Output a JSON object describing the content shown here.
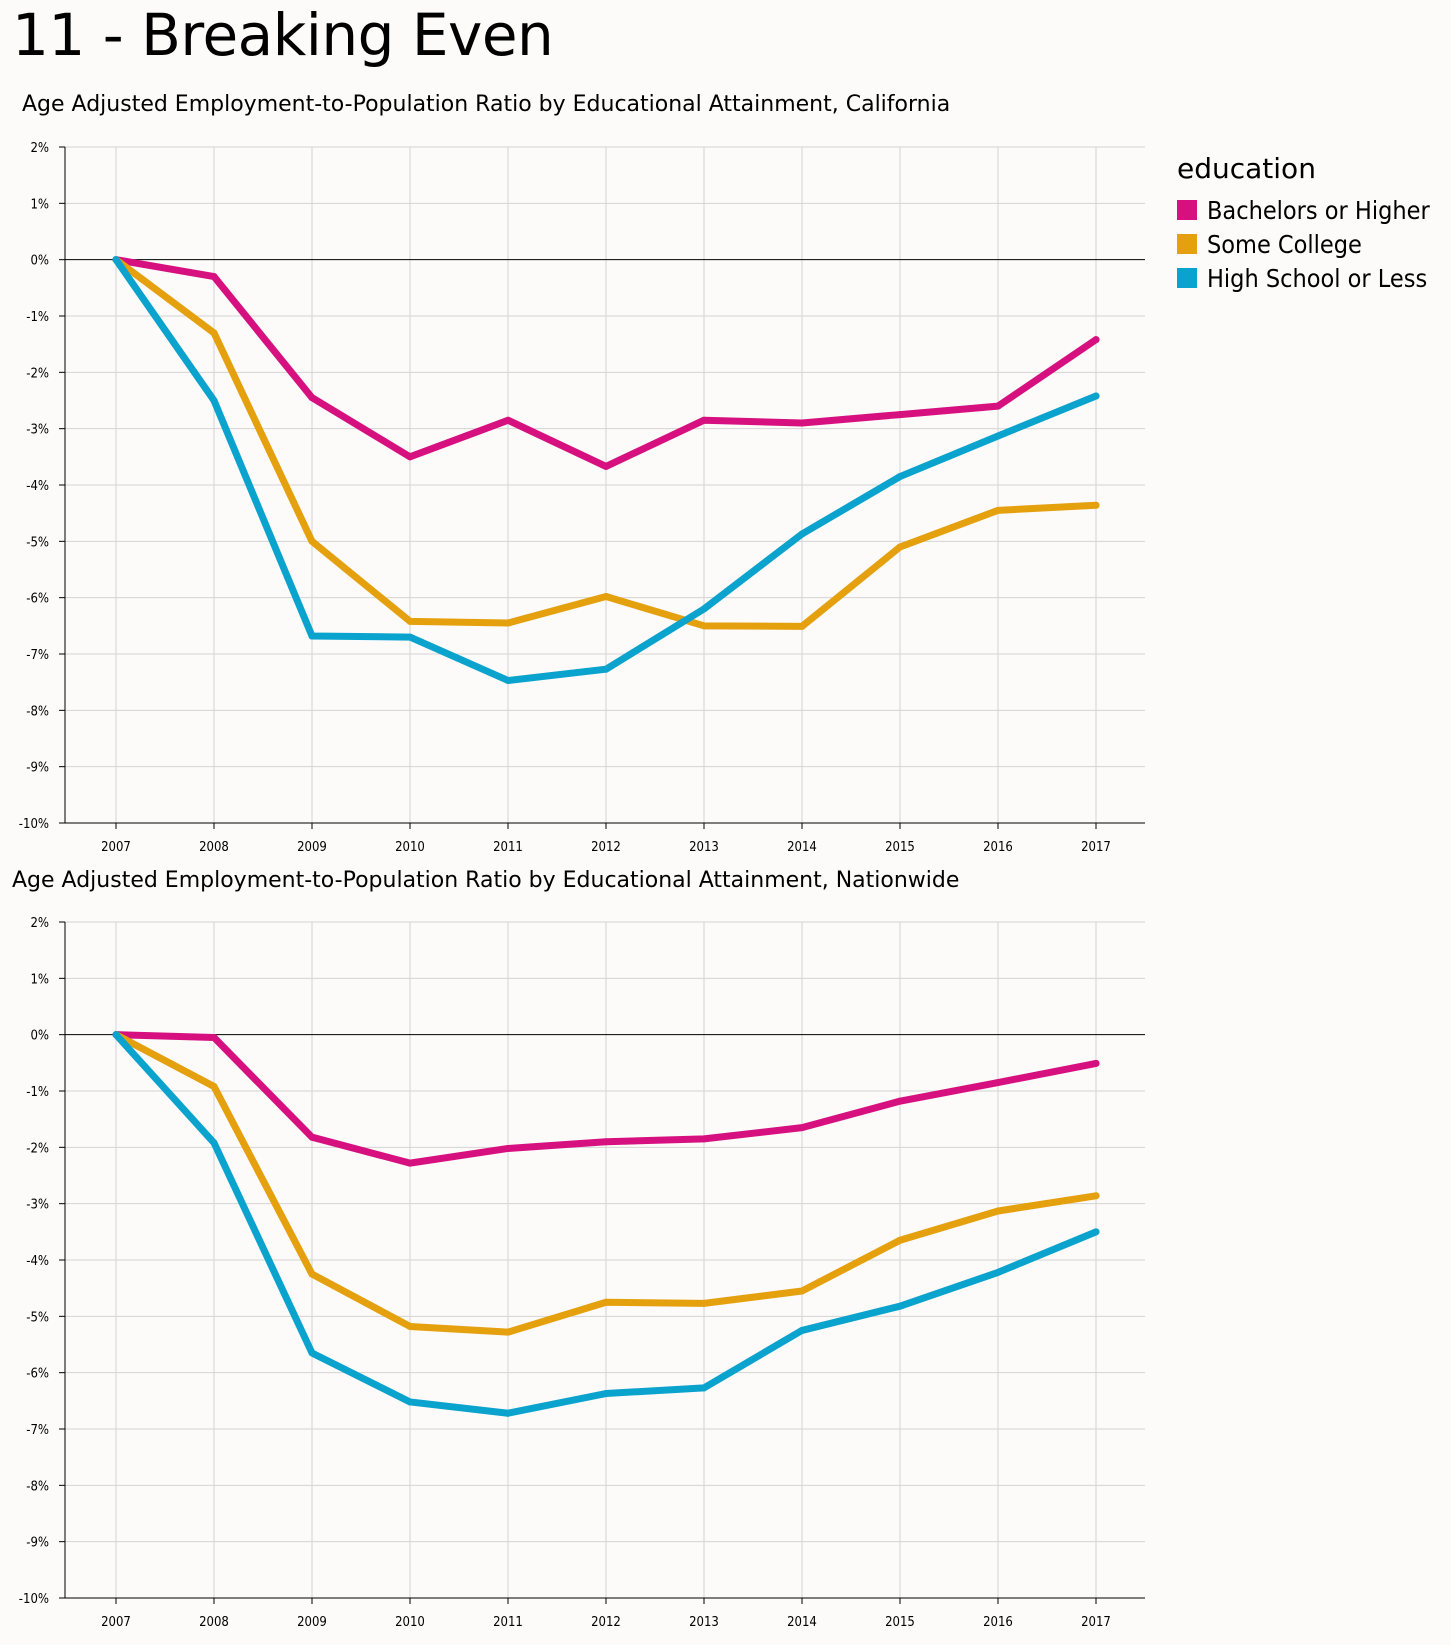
{
  "page": {
    "title": "11 - Breaking Even"
  },
  "legend": {
    "title": "education",
    "items": [
      {
        "label": "Bachelors or Higher",
        "color": "#d6117f"
      },
      {
        "label": "Some College",
        "color": "#e5a00d"
      },
      {
        "label": "High School or Less",
        "color": "#09a3cd"
      }
    ]
  },
  "chart_data": [
    {
      "type": "line",
      "title": "Age Adjusted Employment-to-Population Ratio by Educational Attainment, California",
      "xlabel": "",
      "ylabel": "",
      "x": [
        "2007",
        "2008",
        "2009",
        "2010",
        "2011",
        "2012",
        "2013",
        "2014",
        "2015",
        "2016",
        "2017"
      ],
      "ylim": [
        -10,
        2
      ],
      "yticks": [
        "2%",
        "1%",
        "0%",
        "-1%",
        "-2%",
        "-3%",
        "-4%",
        "-5%",
        "-6%",
        "-7%",
        "-8%",
        "-9%",
        "-10%"
      ],
      "grid": true,
      "legend_position": "right",
      "series": [
        {
          "name": "Bachelors or Higher",
          "color": "#d6117f",
          "values": [
            0,
            -0.3,
            -2.45,
            -3.5,
            -2.85,
            -3.67,
            -2.85,
            -2.9,
            -2.75,
            -2.6,
            -1.42
          ]
        },
        {
          "name": "Some College",
          "color": "#e5a00d",
          "values": [
            0,
            -1.3,
            -5.0,
            -6.42,
            -6.45,
            -5.98,
            -6.5,
            -6.51,
            -5.1,
            -4.45,
            -4.36
          ]
        },
        {
          "name": "High School or Less",
          "color": "#09a3cd",
          "values": [
            0,
            -2.5,
            -6.68,
            -6.7,
            -7.47,
            -7.27,
            -6.2,
            -4.87,
            -3.85,
            -3.13,
            -2.42
          ]
        }
      ]
    },
    {
      "type": "line",
      "title": "Age Adjusted Employment-to-Population Ratio by Educational Attainment, Nationwide",
      "xlabel": "",
      "ylabel": "",
      "x": [
        "2007",
        "2008",
        "2009",
        "2010",
        "2011",
        "2012",
        "2013",
        "2014",
        "2015",
        "2016",
        "2017"
      ],
      "ylim": [
        -10,
        2
      ],
      "yticks": [
        "2%",
        "1%",
        "0%",
        "-1%",
        "-2%",
        "-3%",
        "-4%",
        "-5%",
        "-6%",
        "-7%",
        "-8%",
        "-9%",
        "-10%"
      ],
      "grid": true,
      "legend_position": "right",
      "series": [
        {
          "name": "Bachelors or Higher",
          "color": "#d6117f",
          "values": [
            0,
            -0.05,
            -1.82,
            -2.28,
            -2.02,
            -1.9,
            -1.85,
            -1.65,
            -1.18,
            -0.85,
            -0.51
          ]
        },
        {
          "name": "Some College",
          "color": "#e5a00d",
          "values": [
            0,
            -0.92,
            -4.25,
            -5.18,
            -5.28,
            -4.75,
            -4.77,
            -4.55,
            -3.65,
            -3.13,
            -2.86
          ]
        },
        {
          "name": "High School or Less",
          "color": "#09a3cd",
          "values": [
            0,
            -1.92,
            -5.65,
            -6.52,
            -6.72,
            -6.37,
            -6.27,
            -5.25,
            -4.82,
            -4.22,
            -3.5
          ]
        }
      ]
    }
  ]
}
